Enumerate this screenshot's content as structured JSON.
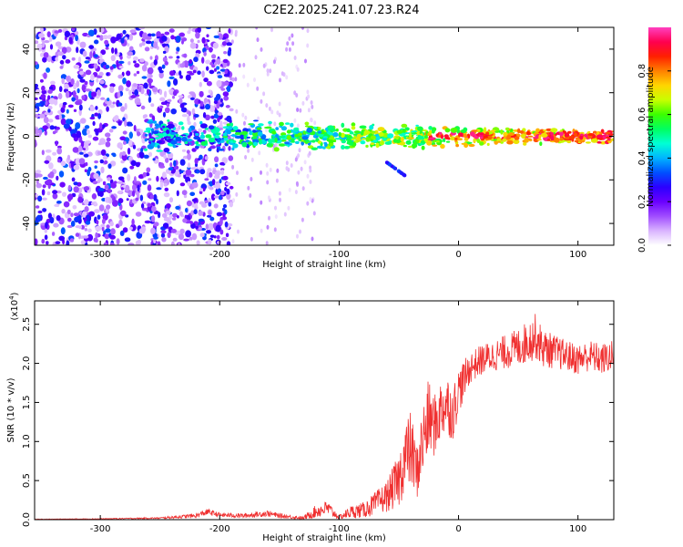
{
  "figure": {
    "title": "C2E2.2025.241.07.23.R24"
  },
  "chart_data": [
    {
      "type": "heatmap",
      "name": "spectrogram",
      "xlabel": "Height of straight line (km)",
      "ylabel": "Frequency (Hz)",
      "xlim": [
        -355,
        130
      ],
      "ylim": [
        -50,
        50
      ],
      "xticks": [
        -300,
        -200,
        -100,
        0,
        100
      ],
      "xtick_labels": [
        "-300",
        "-200",
        "-100",
        "0",
        "100"
      ],
      "yticks": [
        -40,
        -20,
        0,
        20,
        40
      ],
      "ytick_labels": [
        "-40",
        "-20",
        "0",
        "20",
        "40"
      ],
      "colorbar": {
        "label": "Normalized spectral amplitude",
        "range": [
          0,
          1
        ],
        "ticks": [
          0.0,
          0.2,
          0.4,
          0.6,
          0.8
        ],
        "tick_labels": [
          "0.0",
          "0.2",
          "0.4",
          "0.6",
          "0.8"
        ],
        "colors": [
          "#ffffff",
          "#d9b3ff",
          "#a04dff",
          "#6a00ff",
          "#2b00ff",
          "#0050ff",
          "#00b4ff",
          "#00ffd5",
          "#00ff60",
          "#3cff00",
          "#c8ff00",
          "#ffd500",
          "#ff8000",
          "#ff2000",
          "#ff0050",
          "#ff40c0"
        ]
      },
      "features": [
        {
          "name": "broadband noise",
          "x_range": [
            -355,
            -190
          ],
          "y_range": [
            -50,
            50
          ],
          "amplitude": [
            0.05,
            0.35
          ]
        },
        {
          "name": "scattered streaks",
          "x_range": [
            -190,
            -120
          ],
          "y_range": [
            -50,
            50
          ],
          "amplitude": [
            0.02,
            0.1
          ]
        },
        {
          "name": "main signal band",
          "x_range": [
            -262,
            130
          ],
          "y_center": 0,
          "amplitude": [
            0.2,
            0.95
          ]
        },
        {
          "name": "branch",
          "x_range": [
            -60,
            -45
          ],
          "y_range": [
            -12,
            -18
          ],
          "amplitude": [
            0.25,
            0.35
          ]
        }
      ]
    },
    {
      "type": "line",
      "name": "snr",
      "xlabel": "Height of straight line (km)",
      "ylabel": "SNR (10 * v/v)",
      "y_scale_label": "(x10",
      "y_scale_exp": "4",
      "y_scale_close": ")",
      "xlim": [
        -355,
        130
      ],
      "ylim": [
        0,
        2.8
      ],
      "xticks": [
        -300,
        -200,
        -100,
        0,
        100
      ],
      "xtick_labels": [
        "-300",
        "-200",
        "-100",
        "0",
        "100"
      ],
      "yticks": [
        0.0,
        0.5,
        1.0,
        1.5,
        2.0,
        2.5
      ],
      "ytick_labels": [
        "0.0",
        "0.5",
        "1.0",
        "1.5",
        "2.0",
        "2.5"
      ],
      "color": "#f03030",
      "series": [
        {
          "name": "SNR",
          "x": [
            -355,
            -300,
            -250,
            -220,
            -210,
            -200,
            -180,
            -160,
            -150,
            -130,
            -120,
            -110,
            -100,
            -90,
            -80,
            -70,
            -60,
            -50,
            -45,
            -40,
            -35,
            -30,
            -25,
            -20,
            -15,
            -10,
            -5,
            0,
            5,
            10,
            20,
            30,
            40,
            50,
            60,
            65,
            70,
            80,
            90,
            100,
            110,
            120,
            130
          ],
          "y": [
            0.005,
            0.01,
            0.02,
            0.05,
            0.1,
            0.06,
            0.05,
            0.08,
            0.05,
            0.02,
            0.1,
            0.15,
            0.03,
            0.1,
            0.12,
            0.2,
            0.3,
            0.5,
            0.8,
            0.9,
            0.6,
            1.0,
            1.3,
            1.2,
            1.4,
            1.5,
            1.35,
            1.65,
            1.8,
            1.95,
            2.05,
            2.1,
            2.15,
            2.2,
            2.3,
            2.35,
            2.2,
            2.15,
            2.1,
            2.05,
            2.1,
            2.05,
            2.1
          ],
          "noise": [
            0.003,
            0.005,
            0.01,
            0.03,
            0.04,
            0.03,
            0.03,
            0.04,
            0.03,
            0.02,
            0.08,
            0.1,
            0.03,
            0.08,
            0.1,
            0.15,
            0.2,
            0.35,
            0.45,
            0.5,
            0.35,
            0.5,
            0.5,
            0.4,
            0.4,
            0.4,
            0.35,
            0.3,
            0.25,
            0.2,
            0.2,
            0.2,
            0.22,
            0.25,
            0.28,
            0.3,
            0.25,
            0.22,
            0.2,
            0.2,
            0.2,
            0.2,
            0.2
          ]
        }
      ]
    }
  ]
}
